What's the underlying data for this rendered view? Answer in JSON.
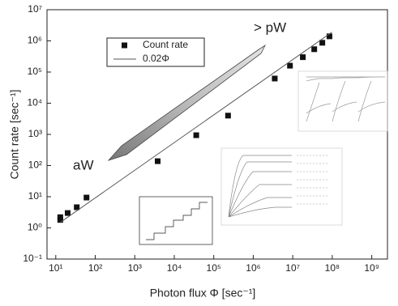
{
  "chart_data": {
    "type": "scatter",
    "x_label": "Photon flux Φ [sec⁻¹]",
    "y_label": "Count rate [sec⁻¹]",
    "log_x": true,
    "log_y": true,
    "xlim": [
      6,
      2500000000
    ],
    "ylim": [
      0.1,
      10000000
    ],
    "xticks": [
      {
        "value": 10,
        "label": "10¹"
      },
      {
        "value": 100,
        "label": "10²"
      },
      {
        "value": 1000,
        "label": "10³"
      },
      {
        "value": 10000,
        "label": "10⁴"
      },
      {
        "value": 100000,
        "label": "10⁵"
      },
      {
        "value": 1000000,
        "label": "10⁶"
      },
      {
        "value": 10000000,
        "label": "10⁷"
      },
      {
        "value": 100000000,
        "label": "10⁸"
      },
      {
        "value": 1000000000,
        "label": "10⁹"
      }
    ],
    "yticks": [
      {
        "value": 0.1,
        "label": "10⁻¹"
      },
      {
        "value": 1,
        "label": "10⁰"
      },
      {
        "value": 10,
        "label": "10¹"
      },
      {
        "value": 100,
        "label": "10²"
      },
      {
        "value": 1000,
        "label": "10³"
      },
      {
        "value": 10000,
        "label": "10⁴"
      },
      {
        "value": 100000,
        "label": "10⁵"
      },
      {
        "value": 1000000,
        "label": "10⁶"
      },
      {
        "value": 10000000,
        "label": "10⁷"
      }
    ],
    "series": [
      {
        "name": "Count rate",
        "style": "markers",
        "color": "#111",
        "x": [
          13,
          13,
          20,
          34,
          60,
          3800,
          36000,
          230000,
          3500000,
          8500000,
          18000000,
          35000000,
          56000000,
          85000000
        ],
        "values": [
          2.2,
          1.8,
          3.0,
          4.6,
          9.4,
          138,
          940,
          4000,
          62000,
          160000,
          300000,
          540000,
          870000,
          1400000
        ]
      },
      {
        "name": "0.02Φ",
        "style": "line",
        "color": "#555",
        "x": [
          13,
          98000000
        ],
        "values": [
          1.5,
          1900000
        ]
      }
    ],
    "annotations": [
      "> pW",
      "aW"
    ]
  }
}
